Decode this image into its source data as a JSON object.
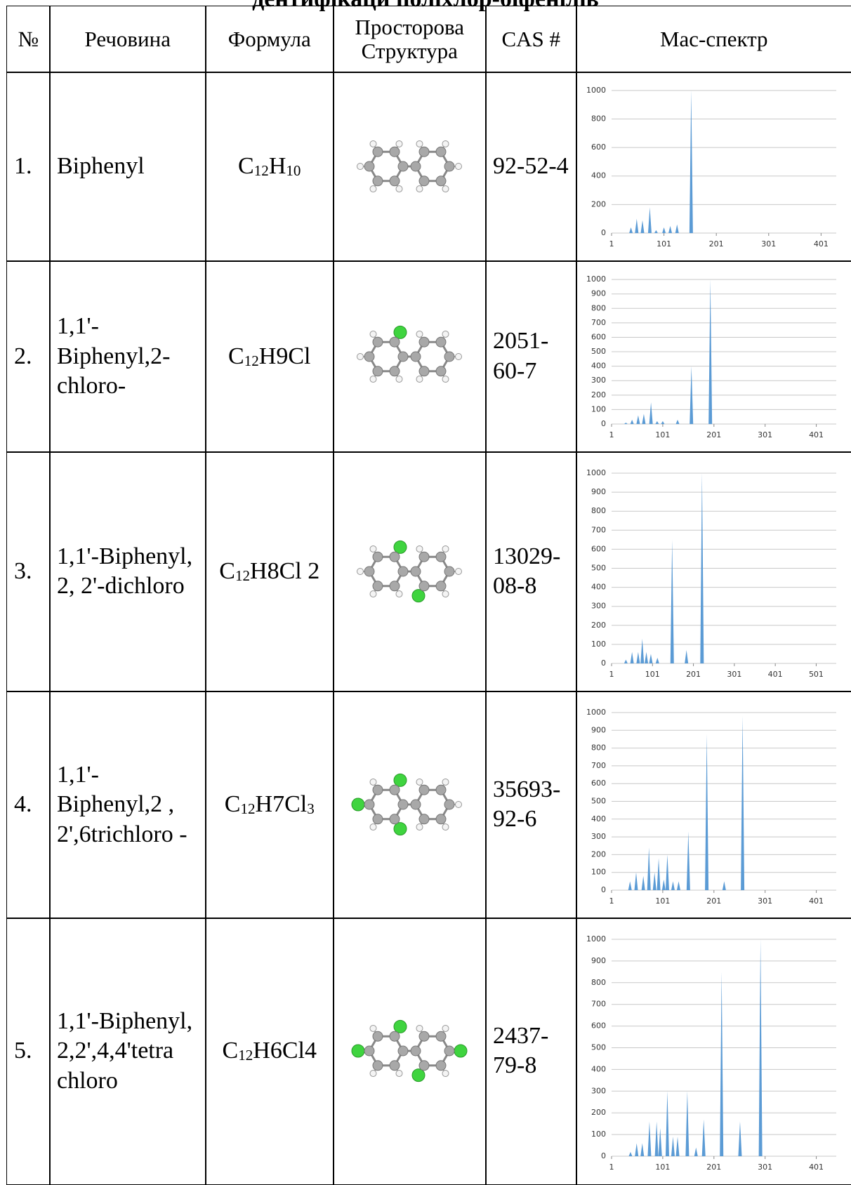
{
  "title": "дентифікаци поліхлор-біфенілів",
  "table": {
    "header": [
      "№",
      "Речовина",
      "Формула",
      "Просторова Структура",
      "CAS #",
      "Мас-спектр"
    ],
    "rows": [
      {
        "number": "1.",
        "substance": "Biphenyl",
        "formula": [
          "C",
          "12",
          "H",
          "10"
        ],
        "cas": "92-52-4",
        "spectrum": {
          "ylim": [
            0,
            1000
          ],
          "yticks": [
            0,
            200,
            400,
            600,
            800,
            1000
          ],
          "xlim": [
            1,
            430
          ],
          "xticks": [
            1,
            101,
            201,
            301,
            401
          ],
          "peaks": {
            "x": [
              38,
              49,
              60,
              74,
              86,
              101,
              113,
              126,
              153
            ],
            "y": [
              40,
              100,
              90,
              180,
              20,
              40,
              50,
              60,
              1000
            ]
          }
        }
      },
      {
        "number": "2.",
        "substance": "1,1'-Biphenyl,2-chloro-",
        "formula": [
          "C",
          "12",
          "H9Cl"
        ],
        "cas": "2051-60-7",
        "spectrum": {
          "ylim": [
            0,
            1000
          ],
          "yticks": [
            0,
            100,
            200,
            300,
            400,
            500,
            600,
            700,
            800,
            900,
            1000
          ],
          "xlim": [
            1,
            440
          ],
          "xticks": [
            1,
            101,
            201,
            301,
            401
          ],
          "peaks": {
            "x": [
              29,
              41,
              53,
              64,
              78,
              90,
              101,
              130,
              157,
              194
            ],
            "y": [
              10,
              30,
              60,
              70,
              150,
              20,
              20,
              30,
              400,
              1000
            ]
          }
        }
      },
      {
        "number": "3.",
        "substance": "1,1'-Biphenyl, 2, 2'-dichloro",
        "formula": [
          "C",
          "12",
          "H8Cl 2"
        ],
        "cas": "13029-08-8",
        "spectrum": {
          "ylim": [
            0,
            1000
          ],
          "yticks": [
            0,
            100,
            200,
            300,
            400,
            500,
            600,
            700,
            800,
            900,
            1000
          ],
          "xlim": [
            1,
            550
          ],
          "xticks": [
            1,
            101,
            201,
            301,
            401,
            501
          ],
          "peaks": {
            "x": [
              36,
              51,
              66,
              76,
              86,
              97,
              113,
              149,
              184,
              222
            ],
            "y": [
              20,
              60,
              60,
              130,
              60,
              50,
              30,
              650,
              70,
              1000
            ]
          }
        }
      },
      {
        "number": "4.",
        "substance": "1,1'-Biphenyl,2 , 2',6trichloro -",
        "formula": [
          "C",
          "12",
          "H7Cl",
          "3"
        ],
        "cas": "35693-92-6",
        "spectrum": {
          "ylim": [
            0,
            1000
          ],
          "yticks": [
            0,
            100,
            200,
            300,
            400,
            500,
            600,
            700,
            800,
            900,
            1000
          ],
          "xlim": [
            1,
            440
          ],
          "xticks": [
            1,
            101,
            201,
            301,
            401
          ],
          "peaks": {
            "x": [
              37,
              49,
              63,
              74,
              85,
              93,
              103,
              110,
              121,
              132,
              151,
              187,
              221,
              257
            ],
            "y": [
              50,
              100,
              80,
              240,
              100,
              180,
              60,
              200,
              50,
              50,
              330,
              880,
              50,
              980
            ]
          }
        }
      },
      {
        "number": "5.",
        "substance": "1,1'-Biphenyl, 2,2',4,4'tetra chloro",
        "formula": [
          "C",
          "12",
          "H6Cl4"
        ],
        "cas": "2437-79-8",
        "spectrum": {
          "ylim": [
            0,
            1000
          ],
          "yticks": [
            0,
            100,
            200,
            300,
            400,
            500,
            600,
            700,
            800,
            900,
            1000
          ],
          "xlim": [
            1,
            440
          ],
          "xticks": [
            1,
            101,
            201,
            301,
            401
          ],
          "peaks": {
            "x": [
              38,
              50,
              61,
              75,
              89,
              96,
              110,
              121,
              130,
              149,
              166,
              181,
              216,
              252,
              292
            ],
            "y": [
              20,
              60,
              60,
              160,
              160,
              130,
              300,
              90,
              90,
              300,
              40,
              170,
              850,
              160,
              1000
            ]
          }
        }
      }
    ]
  }
}
